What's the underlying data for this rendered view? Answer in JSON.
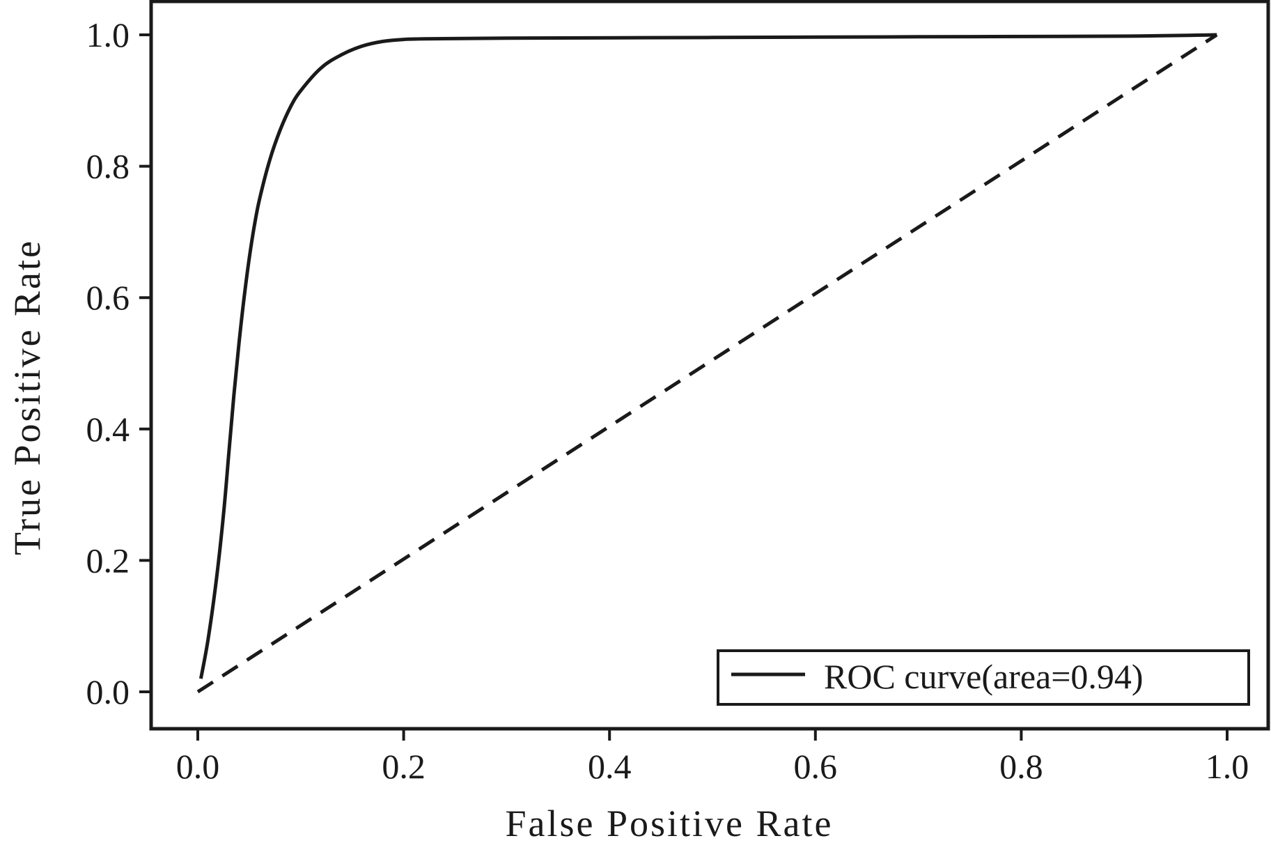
{
  "chart_data": {
    "type": "line",
    "title": "",
    "xlabel": "False Positive Rate",
    "ylabel": "True Positive Rate",
    "xlim": [
      0.0,
      1.0
    ],
    "ylim": [
      0.0,
      1.0
    ],
    "xticks": [
      "0.0",
      "0.2",
      "0.4",
      "0.6",
      "0.8",
      "1.0"
    ],
    "yticks": [
      "0.0",
      "0.2",
      "0.4",
      "0.6",
      "0.8",
      "1.0"
    ],
    "grid": false,
    "legend_position": "lower-right",
    "series": [
      {
        "name": "ROC curve(area=0.94)",
        "style": "solid",
        "color": "#1a1a1a",
        "x": [
          0.003,
          0.01,
          0.018,
          0.025,
          0.03,
          0.035,
          0.04,
          0.045,
          0.05,
          0.055,
          0.06,
          0.07,
          0.08,
          0.09,
          0.1,
          0.12,
          0.14,
          0.16,
          0.18,
          0.2,
          0.22,
          0.3,
          0.5,
          0.7,
          0.9,
          0.99
        ],
        "y": [
          0.02,
          0.08,
          0.17,
          0.27,
          0.36,
          0.45,
          0.53,
          0.6,
          0.66,
          0.71,
          0.75,
          0.81,
          0.855,
          0.89,
          0.915,
          0.95,
          0.97,
          0.983,
          0.99,
          0.993,
          0.994,
          0.995,
          0.996,
          0.997,
          0.998,
          1.0
        ]
      },
      {
        "name": "",
        "style": "dashed",
        "color": "#1a1a1a",
        "x": [
          0.0,
          0.99
        ],
        "y": [
          0.0,
          1.0
        ]
      }
    ]
  }
}
